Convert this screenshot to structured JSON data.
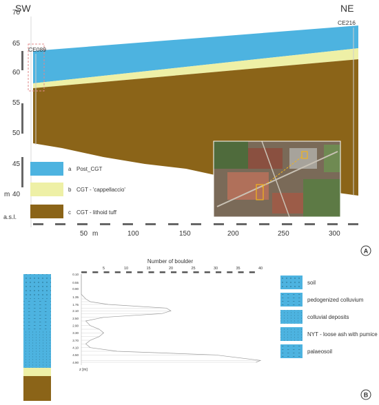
{
  "panel_a": {
    "direction_left": "SW",
    "direction_right": "NE",
    "borehole_left": "CE089",
    "borehole_right": "CE216",
    "elevation_ticks": [
      "70",
      "65",
      "60",
      "55",
      "50",
      "45",
      "40"
    ],
    "elevation_unit_m": "m",
    "elevation_unit_asl": "a.s.l.",
    "distance_ticks": [
      "50",
      "100",
      "150",
      "200",
      "250",
      "300"
    ],
    "distance_unit": "m",
    "legend": [
      {
        "letter": "a",
        "label": "Post_CGT",
        "color": "#4db3e0"
      },
      {
        "letter": "b",
        "label": "CGT - 'cappellaccio'",
        "color": "#eef0a6"
      },
      {
        "letter": "c",
        "label": "CGT - lithoid tuff",
        "color": "#8b6418"
      }
    ],
    "panel_label": "A"
  },
  "panel_b": {
    "x_axis_title": "Number of boulder",
    "x_ticks": [
      "5",
      "10",
      "15",
      "20",
      "25",
      "30",
      "35",
      "40"
    ],
    "depth_ticks": [
      "0.10",
      "0.55",
      "0.90",
      "1.35",
      "1.75",
      "2.10",
      "2.50",
      "2.90",
      "3.30",
      "3.70",
      "4.10",
      "4.50",
      "4.90"
    ],
    "depth_unit": "z [m]",
    "legend": [
      {
        "label": "soil"
      },
      {
        "label": "pedogenized colluvium"
      },
      {
        "label": "colluvial deposits"
      },
      {
        "label": "NYT - loose ash with pumice"
      },
      {
        "label": "palaeosoil"
      }
    ],
    "panel_label": "B"
  },
  "chart_data": {
    "type": "line",
    "title": "",
    "xlabel": "Number of boulder",
    "ylabel": "z [m]",
    "xlim": [
      0,
      40
    ],
    "series": [
      {
        "x": [
          0,
          0,
          0,
          0,
          1,
          2,
          6,
          19,
          20,
          18,
          5,
          1,
          2,
          4,
          5,
          4,
          2,
          1,
          2,
          8,
          30,
          40,
          39
        ],
        "y": [
          0.1,
          0.55,
          0.9,
          1.2,
          1.45,
          1.6,
          1.75,
          1.95,
          2.1,
          2.25,
          2.45,
          2.65,
          2.9,
          3.1,
          3.3,
          3.5,
          3.7,
          3.9,
          4.1,
          4.3,
          4.5,
          4.8,
          4.9
        ]
      }
    ]
  }
}
